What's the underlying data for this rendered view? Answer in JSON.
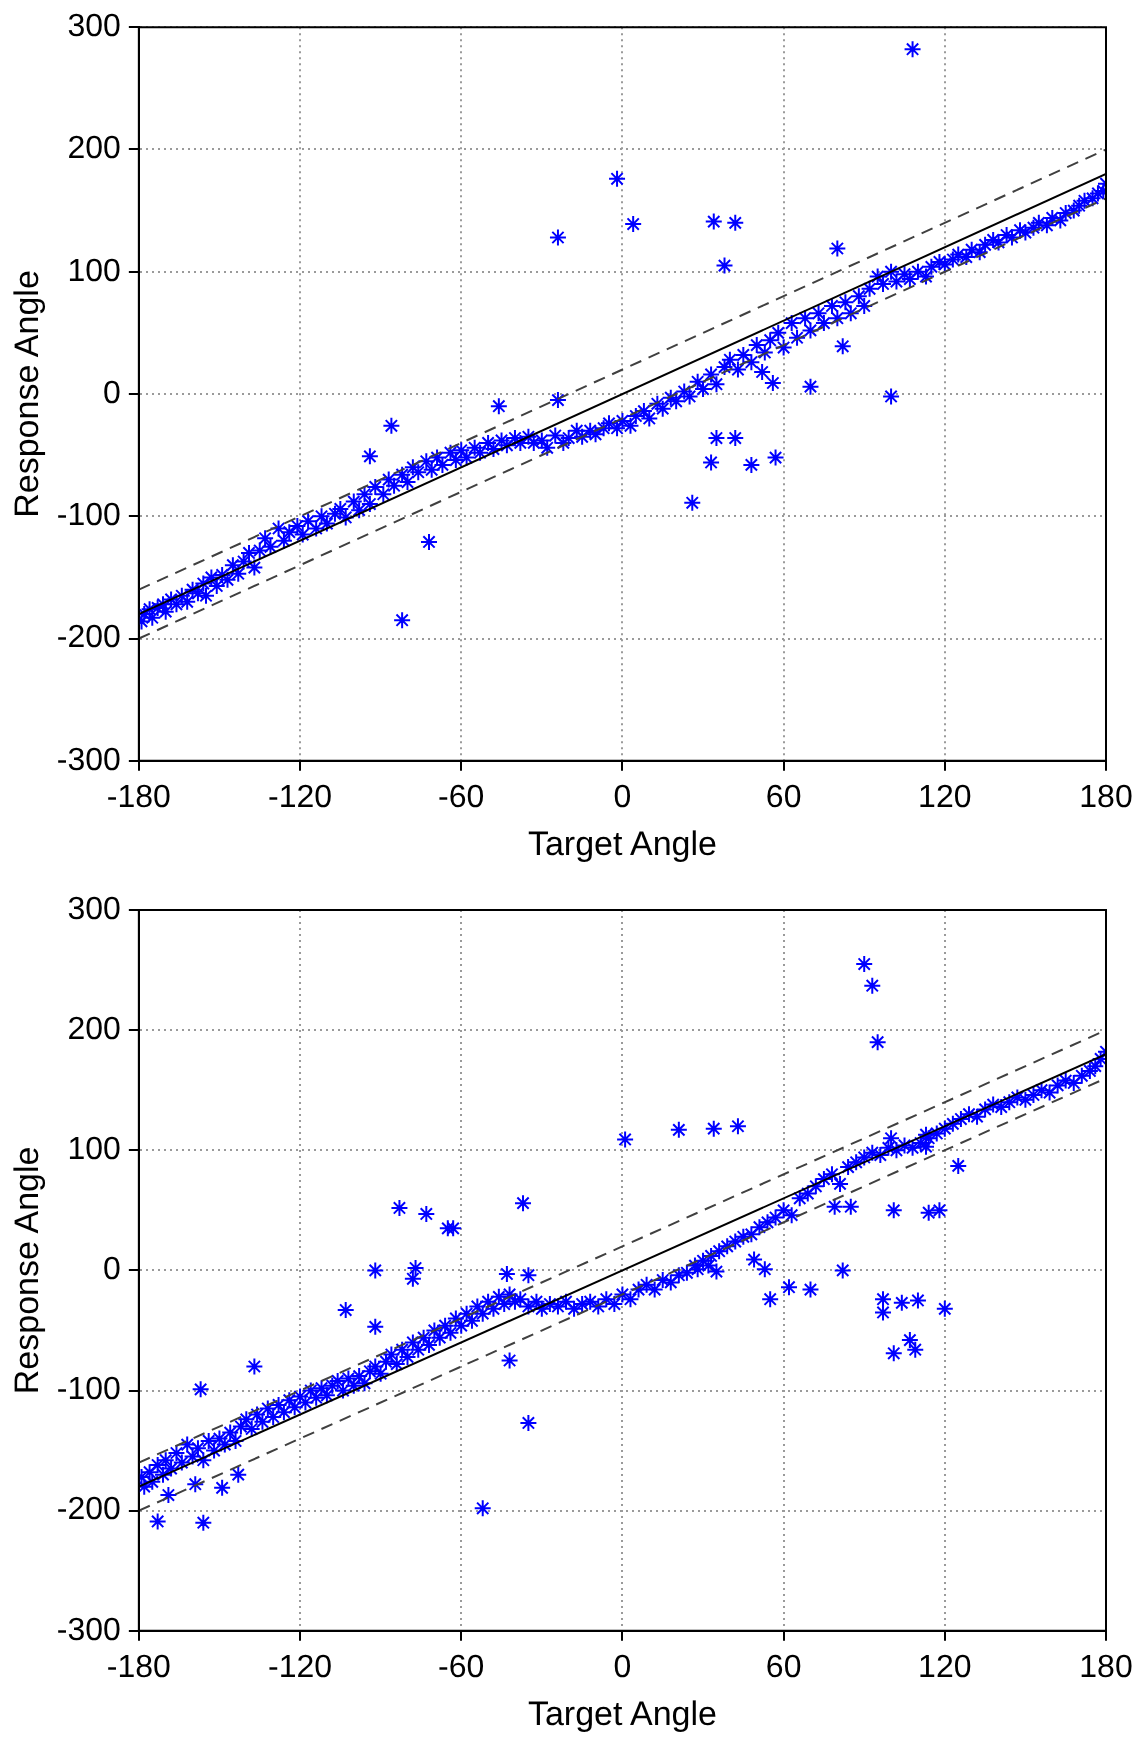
{
  "chart_data": [
    {
      "type": "scatter",
      "xlabel": "Target Angle",
      "ylabel": "Response Angle",
      "xlim": [
        -180,
        180
      ],
      "ylim": [
        -300,
        300
      ],
      "xticks": [
        -180,
        -120,
        -60,
        0,
        60,
        120,
        180
      ],
      "yticks": [
        -300,
        -200,
        -100,
        0,
        100,
        200,
        300
      ],
      "grid": true,
      "marker": "cross",
      "legend": false,
      "series": [
        {
          "color": "#0000ff",
          "x": [
            -179,
            -178,
            -176,
            -175,
            -173,
            -171,
            -170,
            -168,
            -166,
            -164,
            -162,
            -160,
            -158,
            -156,
            -155,
            -153,
            -151,
            -149,
            -147,
            -145,
            -143,
            -141,
            -139,
            -137,
            -135,
            -133,
            -131,
            -128,
            -126,
            -124,
            -121,
            -119,
            -117,
            -114,
            -112,
            -110,
            -107,
            -105,
            -103,
            -100,
            -98,
            -96,
            -94,
            -92,
            -89,
            -87,
            -85,
            -82,
            -80,
            -78,
            -76,
            -73,
            -71,
            -69,
            -67,
            -64,
            -62,
            -60,
            -58,
            -55,
            -53,
            -50,
            -48,
            -45,
            -43,
            -40,
            -38,
            -35,
            -33,
            -30,
            -28,
            -25,
            -22,
            -20,
            -17,
            -15,
            -12,
            -10,
            -7,
            -5,
            -2,
            0,
            3,
            5,
            8,
            10,
            13,
            15,
            18,
            20,
            23,
            25,
            28,
            30,
            33,
            35,
            38,
            40,
            43,
            45,
            48,
            50,
            53,
            55,
            58,
            60,
            63,
            65,
            68,
            70,
            73,
            75,
            78,
            80,
            83,
            85,
            88,
            90,
            92,
            95,
            97,
            100,
            102,
            105,
            107,
            110,
            113,
            115,
            118,
            120,
            123,
            125,
            128,
            130,
            133,
            135,
            138,
            140,
            143,
            145,
            148,
            150,
            153,
            155,
            158,
            160,
            163,
            165,
            168,
            170,
            172,
            175,
            177,
            179,
            180,
            -24,
            -82,
            -72,
            -86,
            -94,
            -46,
            -24,
            108,
            -2,
            4,
            34,
            42,
            38,
            80,
            100,
            26,
            33,
            35,
            42,
            48,
            57,
            70,
            52,
            56,
            82
          ],
          "values": [
            -186,
            -180,
            -176,
            -183,
            -175,
            -172,
            -178,
            -168,
            -172,
            -165,
            -170,
            -160,
            -163,
            -155,
            -165,
            -150,
            -157,
            -148,
            -152,
            -140,
            -147,
            -137,
            -130,
            -142,
            -128,
            -118,
            -125,
            -110,
            -120,
            -113,
            -108,
            -115,
            -104,
            -110,
            -100,
            -106,
            -98,
            -94,
            -101,
            -88,
            -95,
            -82,
            -90,
            -76,
            -82,
            -70,
            -75,
            -66,
            -72,
            -60,
            -64,
            -55,
            -62,
            -52,
            -58,
            -48,
            -54,
            -46,
            -52,
            -44,
            -48,
            -40,
            -45,
            -38,
            -42,
            -36,
            -40,
            -35,
            -40,
            -38,
            -44,
            -34,
            -40,
            -36,
            -30,
            -35,
            -30,
            -33,
            -28,
            -24,
            -28,
            -22,
            -26,
            -18,
            -14,
            -20,
            -8,
            -12,
            -3,
            -6,
            2,
            -2,
            10,
            4,
            16,
            8,
            22,
            28,
            20,
            32,
            26,
            40,
            34,
            44,
            50,
            38,
            58,
            46,
            62,
            52,
            66,
            58,
            72,
            62,
            75,
            66,
            80,
            72,
            86,
            96,
            90,
            100,
            92,
            98,
            94,
            100,
            96,
            104,
            108,
            106,
            110,
            114,
            112,
            118,
            116,
            122,
            126,
            124,
            130,
            128,
            134,
            132,
            136,
            140,
            138,
            144,
            142,
            148,
            150,
            154,
            158,
            160,
            164,
            166,
            172,
            128,
            -185,
            -121,
            -26,
            -51,
            -10,
            -5,
            282,
            176,
            139,
            141,
            140,
            105,
            119,
            -2,
            -89,
            -56,
            -36,
            -36,
            -58,
            -52,
            6,
            18,
            9,
            39
          ]
        },
        {
          "type": "line",
          "color": "#000000",
          "line_style": "solid",
          "marker": "none",
          "x": [
            -180,
            180
          ],
          "values": [
            -180,
            180
          ]
        },
        {
          "type": "line",
          "color": "#404040",
          "line_style": "dashed",
          "marker": "none",
          "x": [
            -180,
            180
          ],
          "values": [
            -160,
            200
          ]
        },
        {
          "type": "line",
          "color": "#404040",
          "line_style": "dashed",
          "marker": "none",
          "x": [
            -180,
            180
          ],
          "values": [
            -200,
            160
          ]
        }
      ]
    },
    {
      "type": "scatter",
      "xlabel": "Target Angle",
      "ylabel": "Response Angle",
      "xlim": [
        -180,
        180
      ],
      "ylim": [
        -300,
        300
      ],
      "xticks": [
        -180,
        -120,
        -60,
        0,
        60,
        120,
        180
      ],
      "yticks": [
        -300,
        -200,
        -100,
        0,
        100,
        200,
        300
      ],
      "grid": true,
      "marker": "cross",
      "legend": false,
      "series": [
        {
          "color": "#0000ff",
          "x": [
            -179,
            -178,
            -176,
            -175,
            -173,
            -171,
            -170,
            -168,
            -166,
            -164,
            -162,
            -160,
            -158,
            -156,
            -154,
            -152,
            -150,
            -148,
            -146,
            -144,
            -142,
            -140,
            -138,
            -136,
            -134,
            -132,
            -130,
            -128,
            -126,
            -124,
            -122,
            -120,
            -118,
            -116,
            -114,
            -112,
            -110,
            -108,
            -106,
            -104,
            -102,
            -100,
            -98,
            -96,
            -94,
            -92,
            -90,
            -88,
            -86,
            -84,
            -82,
            -80,
            -78,
            -76,
            -74,
            -72,
            -70,
            -68,
            -66,
            -64,
            -62,
            -60,
            -58,
            -56,
            -54,
            -52,
            -50,
            -48,
            -46,
            -44,
            -42,
            -40,
            -38,
            -35,
            -32,
            -30,
            -27,
            -24,
            -21,
            -18,
            -15,
            -12,
            -9,
            -6,
            -3,
            0,
            3,
            6,
            9,
            12,
            15,
            18,
            21,
            24,
            27,
            30,
            33,
            36,
            39,
            42,
            45,
            48,
            51,
            54,
            57,
            60,
            63,
            66,
            69,
            72,
            75,
            78,
            81,
            84,
            87,
            90,
            93,
            96,
            99,
            102,
            105,
            108,
            111,
            114,
            117,
            120,
            123,
            126,
            129,
            132,
            135,
            138,
            141,
            144,
            147,
            150,
            153,
            156,
            159,
            162,
            165,
            168,
            171,
            174,
            176,
            178,
            180,
            -83,
            -73,
            -65,
            -63,
            -37,
            -92,
            -77,
            -78,
            -43,
            -35,
            -103,
            -92,
            -137,
            -157,
            -42,
            -35,
            -52,
            -173,
            -156,
            -149,
            -159,
            -169,
            -143,
            90,
            93,
            95,
            1,
            21,
            34,
            43,
            100,
            113,
            113,
            125,
            101,
            114,
            118,
            97,
            97,
            104,
            110,
            120,
            101,
            109,
            107,
            82,
            70,
            62,
            55,
            53,
            49,
            35,
            32,
            28,
            85,
            79
          ],
          "values": [
            -172,
            -180,
            -168,
            -176,
            -162,
            -170,
            -158,
            -165,
            -152,
            -160,
            -145,
            -155,
            -148,
            -158,
            -142,
            -150,
            -140,
            -145,
            -135,
            -142,
            -130,
            -124,
            -132,
            -120,
            -126,
            -115,
            -122,
            -112,
            -118,
            -108,
            -114,
            -105,
            -110,
            -100,
            -106,
            -98,
            -104,
            -96,
            -92,
            -100,
            -90,
            -96,
            -88,
            -94,
            -84,
            -80,
            -86,
            -76,
            -70,
            -78,
            -66,
            -72,
            -60,
            -66,
            -56,
            -62,
            -50,
            -56,
            -46,
            -52,
            -40,
            -46,
            -36,
            -42,
            -30,
            -36,
            -26,
            -32,
            -22,
            -28,
            -20,
            -26,
            -24,
            -30,
            -26,
            -32,
            -28,
            -30,
            -26,
            -32,
            -28,
            -26,
            -30,
            -24,
            -28,
            -20,
            -24,
            -16,
            -12,
            -16,
            -8,
            -10,
            -4,
            -2,
            4,
            8,
            12,
            16,
            20,
            24,
            28,
            30,
            36,
            40,
            44,
            50,
            46,
            60,
            64,
            70,
            76,
            80,
            72,
            86,
            90,
            94,
            98,
            96,
            102,
            100,
            104,
            102,
            106,
            110,
            114,
            118,
            122,
            126,
            130,
            128,
            134,
            138,
            136,
            140,
            144,
            142,
            146,
            150,
            148,
            154,
            158,
            156,
            162,
            166,
            170,
            176,
            182,
            52,
            47,
            35,
            35,
            56,
            0,
            2,
            -7,
            -3,
            -4,
            -33,
            -47,
            -80,
            -99,
            -75,
            -127,
            -198,
            -209,
            -210,
            -181,
            -178,
            -187,
            -170,
            255,
            237,
            190,
            109,
            117,
            118,
            120,
            110,
            113,
            103,
            87,
            50,
            48,
            50,
            -24,
            -35,
            -27,
            -25,
            -32,
            -69,
            -66,
            -58,
            0,
            -16,
            -14,
            -24,
            1,
            9,
            -1,
            4,
            1,
            53,
            53
          ]
        },
        {
          "type": "line",
          "color": "#000000",
          "line_style": "solid",
          "marker": "none",
          "x": [
            -180,
            180
          ],
          "values": [
            -180,
            180
          ]
        },
        {
          "type": "line",
          "color": "#404040",
          "line_style": "dashed",
          "marker": "none",
          "x": [
            -180,
            180
          ],
          "values": [
            -160,
            200
          ]
        },
        {
          "type": "line",
          "color": "#404040",
          "line_style": "dashed",
          "marker": "none",
          "x": [
            -180,
            180
          ],
          "values": [
            -200,
            160
          ]
        }
      ]
    }
  ]
}
